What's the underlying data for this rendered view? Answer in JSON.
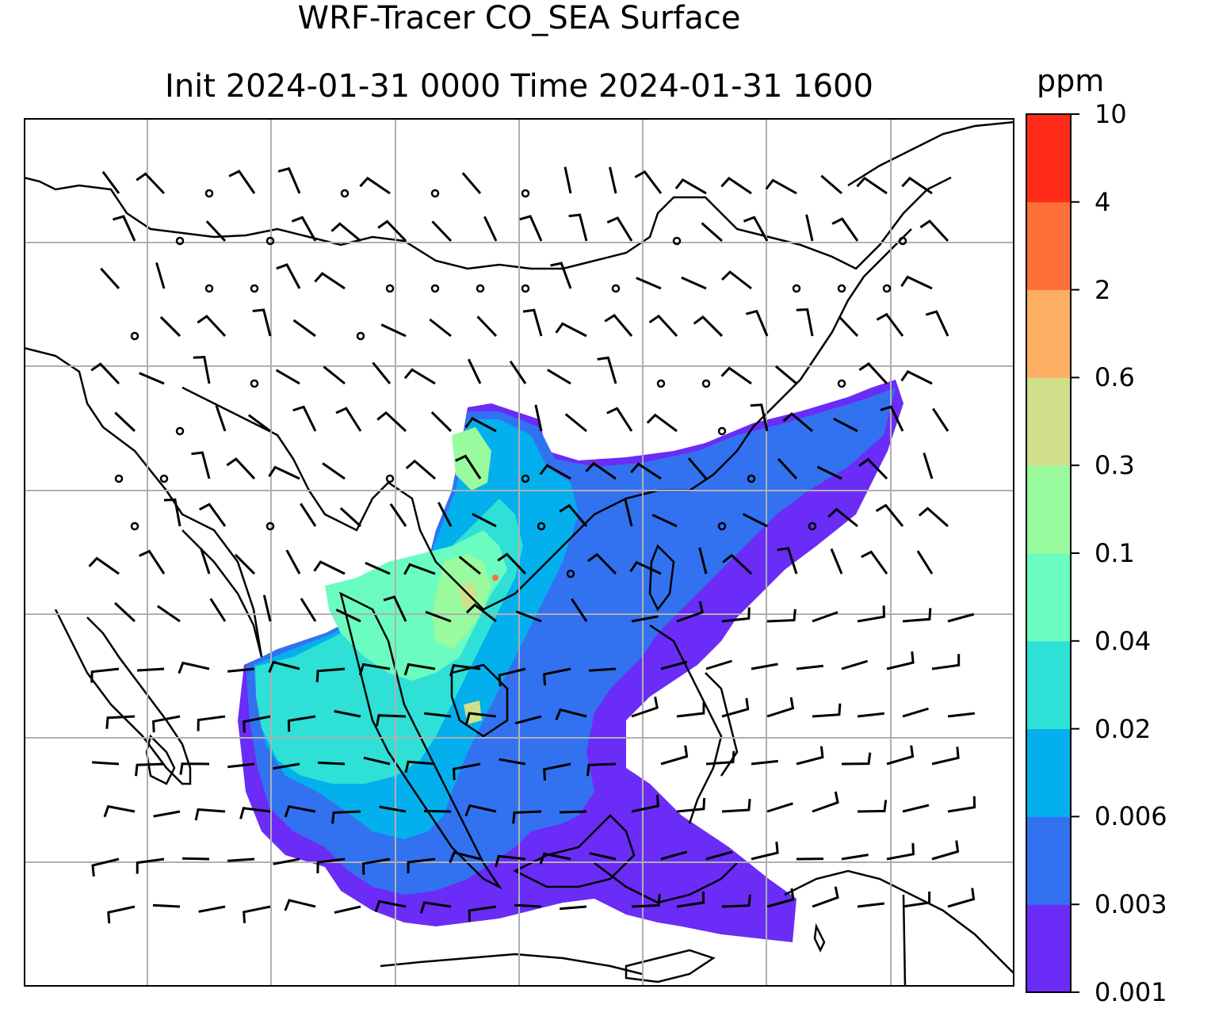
{
  "title": {
    "line1": "WRF-Tracer CO_SEA Surface",
    "line2": "Init 2024-01-31 0000 Time 2024-01-31 1600"
  },
  "colorbar": {
    "unit": "ppm",
    "levels": [
      "0.001",
      "0.003",
      "0.006",
      "0.02",
      "0.04",
      "0.1",
      "0.3",
      "0.6",
      "2",
      "4",
      "10"
    ],
    "colors": [
      "#6a2cf6",
      "#3272f0",
      "#03b0ed",
      "#2ee0d6",
      "#6afcc0",
      "#9afa9e",
      "#d0e08a",
      "#fcae62",
      "#ff7039",
      "#fe2c18"
    ]
  },
  "map": {
    "gridlines": true,
    "wind_barbs": true,
    "coastlines": true,
    "region": "Southeast Asia",
    "gridline_color": "#b0b0b0"
  }
}
